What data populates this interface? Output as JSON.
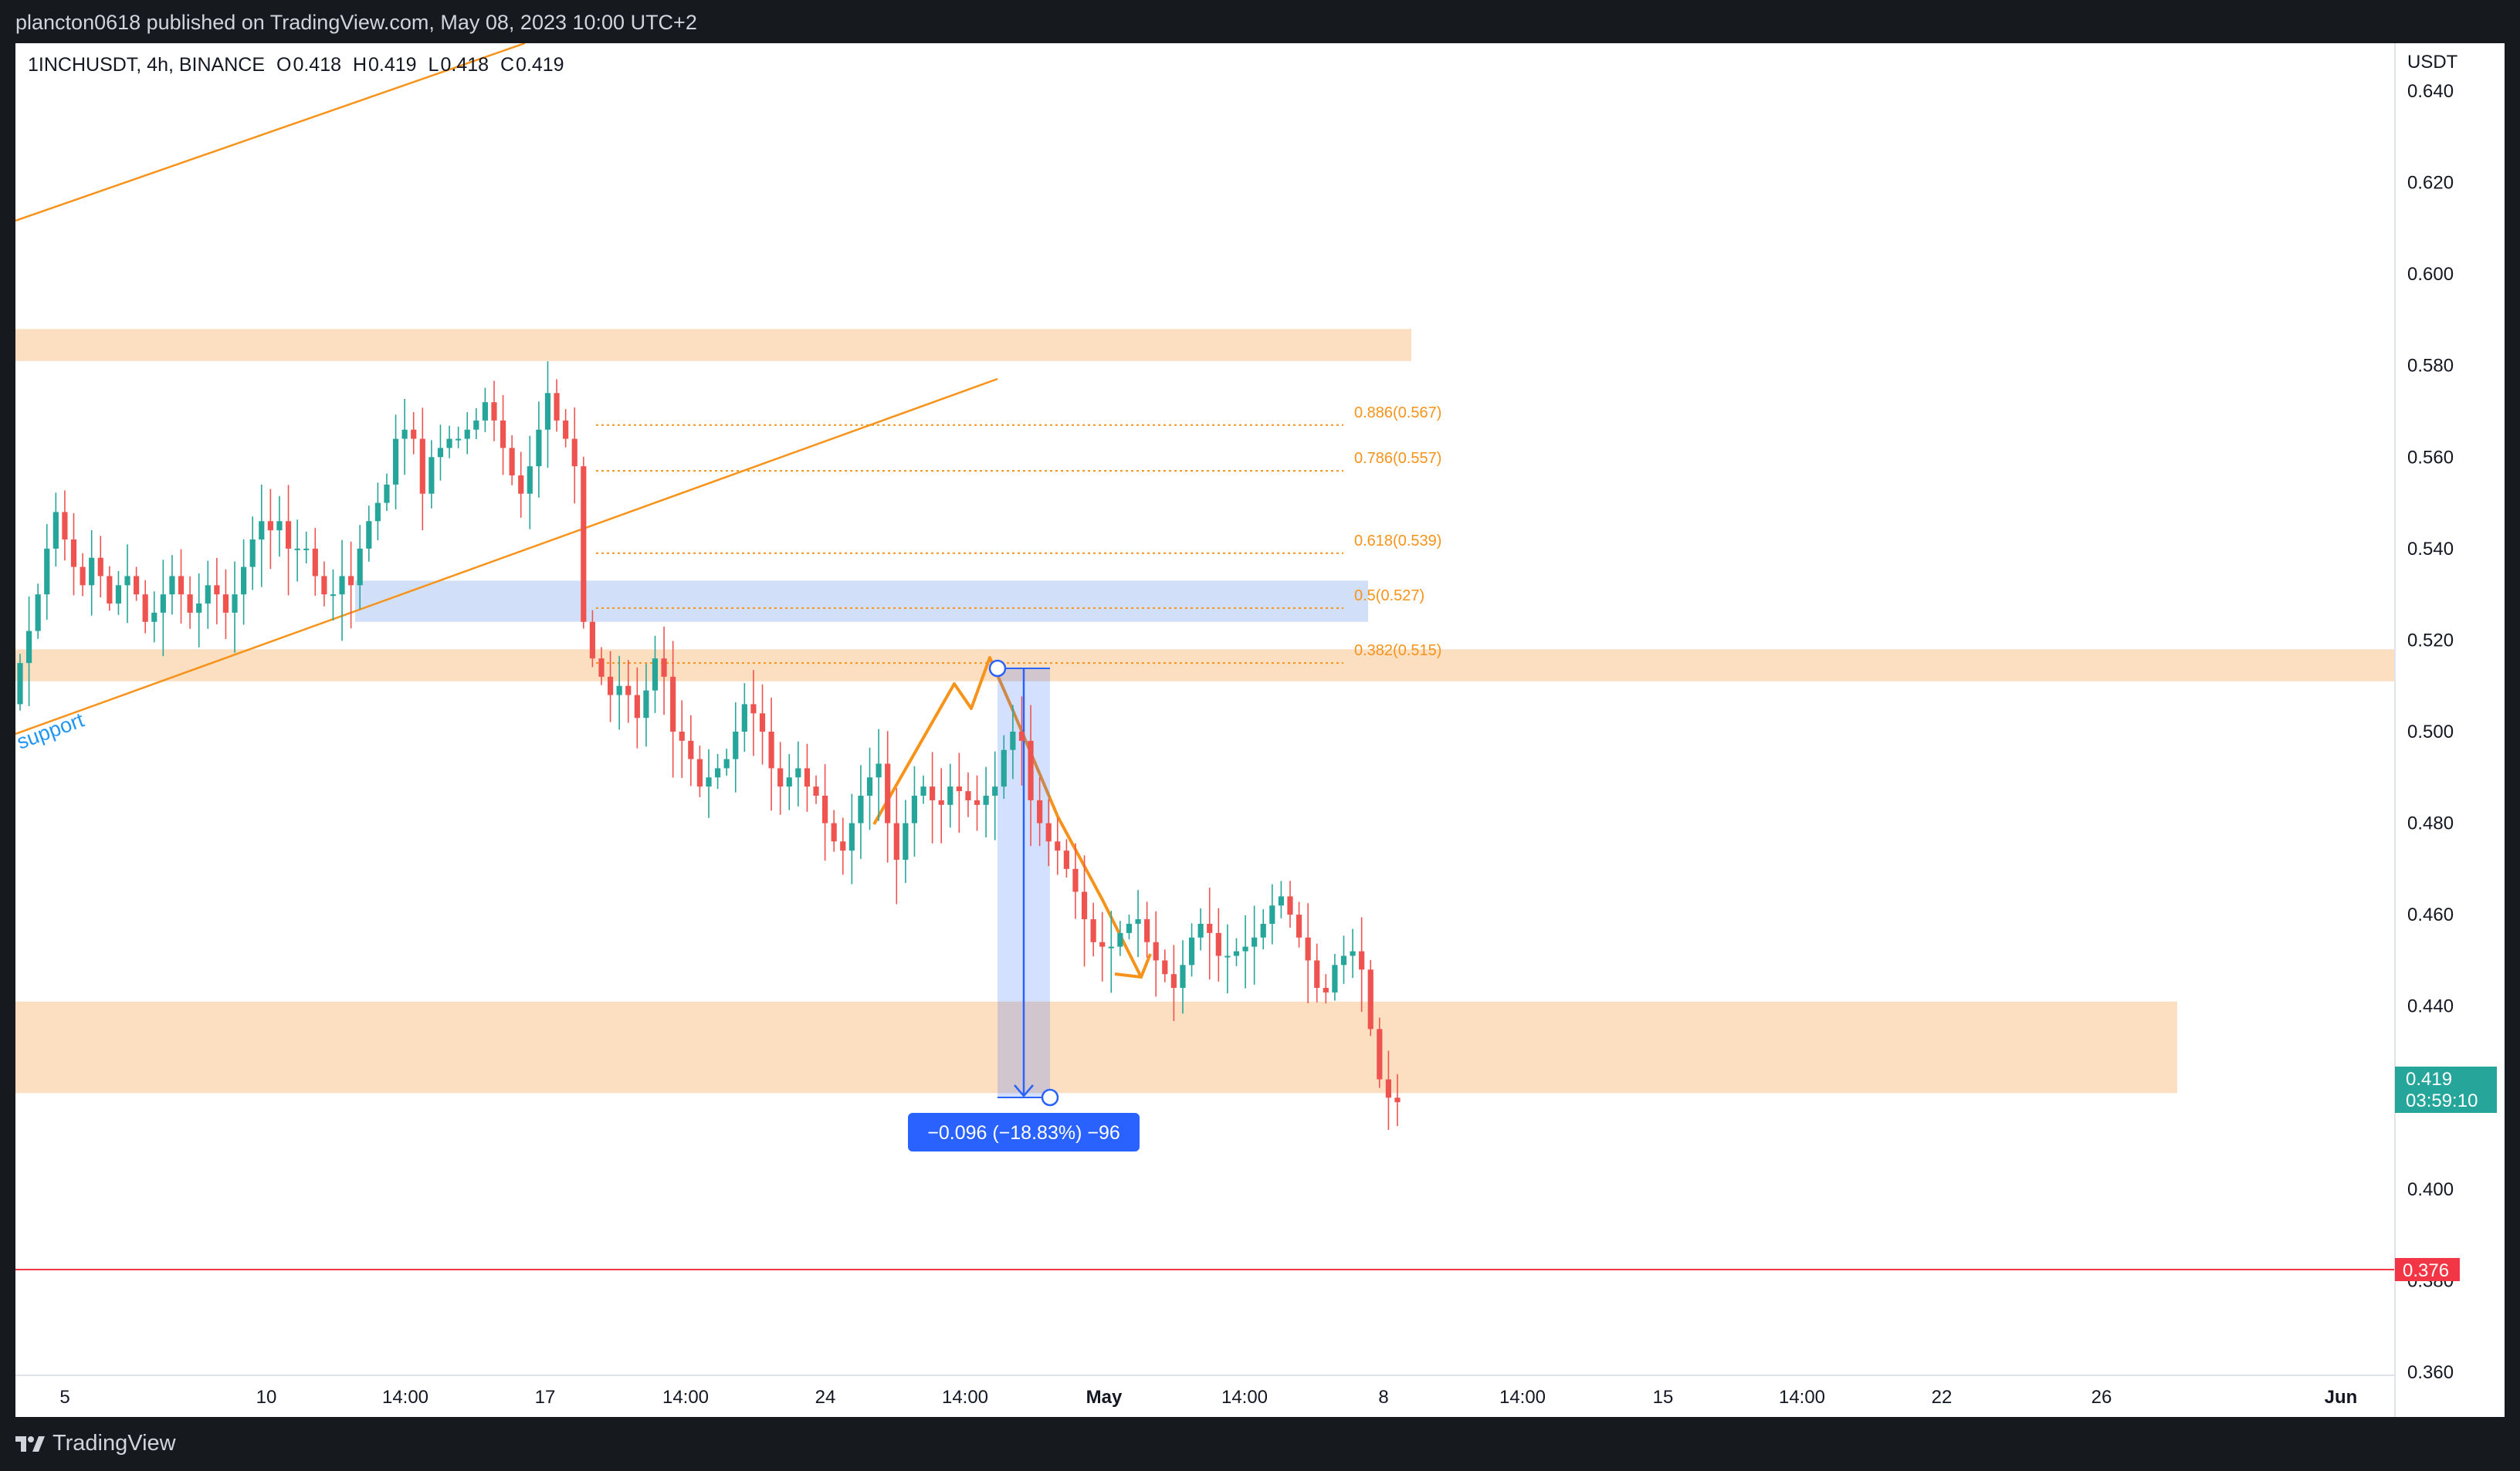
{
  "header": {
    "publisher_line": "plancton0618 published on TradingView.com, May 08, 2023 10:00 UTC+2"
  },
  "footer": {
    "brand": "TradingView",
    "logo_icon": "tradingview-logo-icon"
  },
  "legend": {
    "symbol": "1INCHUSDT, 4h, BINANCE",
    "open_label": "O",
    "open": "0.418",
    "high_label": "H",
    "high": "0.419",
    "low_label": "L",
    "low": "0.418",
    "close_label": "C",
    "close": "0.419"
  },
  "price_axis": {
    "currency": "USDT",
    "ticks": [
      "0.640",
      "0.620",
      "0.600",
      "0.580",
      "0.560",
      "0.540",
      "0.520",
      "0.500",
      "0.480",
      "0.460",
      "0.440",
      "0.400",
      "0.380",
      "0.360"
    ],
    "last_price": "0.419",
    "countdown": "03:59:10",
    "alert_price": "0.376"
  },
  "time_axis": {
    "ticks": [
      "5",
      "10",
      "14:00",
      "17",
      "14:00",
      "24",
      "14:00",
      "May",
      "14:00",
      "8",
      "14:00",
      "15",
      "14:00",
      "22",
      "26",
      "Jun"
    ]
  },
  "annotations": {
    "support_label": "support",
    "fib_levels": [
      "0.886(0.567)",
      "0.786(0.557)",
      "0.618(0.539)",
      "0.5(0.527)",
      "0.382(0.515)"
    ],
    "measure_label": "−0.096 (−18.83%) −96"
  },
  "colors": {
    "up": "#26a69a",
    "down": "#ef5350",
    "fib": "#f7931a",
    "zone_orange": "#fcd9b6",
    "zone_blue": "#c9dbf7",
    "measure_blue": "#2962ff",
    "alert_red": "#f23645",
    "last_price_teal": "#26a69a"
  },
  "chart_data": {
    "type": "candlestick",
    "symbol": "1INCHUSDT",
    "interval": "4h",
    "ylim": [
      0.352,
      0.646
    ],
    "last_close": 0.419,
    "zones": [
      {
        "low": 0.581,
        "high": 0.588
      },
      {
        "low": 0.524,
        "high": 0.533
      },
      {
        "low": 0.511,
        "high": 0.518
      },
      {
        "low": 0.421,
        "high": 0.441
      }
    ],
    "fib_prices": [
      0.567,
      0.557,
      0.539,
      0.527,
      0.515
    ],
    "alert_line": 0.376,
    "close_series": [
      0.515,
      0.522,
      0.53,
      0.54,
      0.548,
      0.542,
      0.536,
      0.532,
      0.538,
      0.534,
      0.528,
      0.532,
      0.534,
      0.53,
      0.524,
      0.526,
      0.53,
      0.534,
      0.53,
      0.526,
      0.528,
      0.532,
      0.53,
      0.526,
      0.53,
      0.536,
      0.542,
      0.546,
      0.544,
      0.546,
      0.54,
      0.54,
      0.54,
      0.534,
      0.53,
      0.53,
      0.534,
      0.532,
      0.54,
      0.546,
      0.55,
      0.554,
      0.564,
      0.566,
      0.564,
      0.552,
      0.56,
      0.562,
      0.564,
      0.564,
      0.566,
      0.568,
      0.572,
      0.568,
      0.562,
      0.556,
      0.552,
      0.558,
      0.566,
      0.574,
      0.568,
      0.564,
      0.558,
      0.524,
      0.516,
      0.512,
      0.508,
      0.51,
      0.508,
      0.503,
      0.509,
      0.516,
      0.512,
      0.5,
      0.498,
      0.494,
      0.488,
      0.49,
      0.492,
      0.494,
      0.5,
      0.506,
      0.504,
      0.5,
      0.492,
      0.488,
      0.49,
      0.492,
      0.488,
      0.486,
      0.48,
      0.476,
      0.474,
      0.48,
      0.486,
      0.49,
      0.493,
      0.48,
      0.472,
      0.48,
      0.486,
      0.488,
      0.485,
      0.484,
      0.488,
      0.487,
      0.485,
      0.484,
      0.486,
      0.488,
      0.496,
      0.5,
      0.498,
      0.485,
      0.48,
      0.476,
      0.474,
      0.47,
      0.465,
      0.459,
      0.454,
      0.453,
      0.453,
      0.456,
      0.458,
      0.459,
      0.454,
      0.45,
      0.447,
      0.444,
      0.449,
      0.455,
      0.458,
      0.456,
      0.451,
      0.451,
      0.452,
      0.453,
      0.455,
      0.458,
      0.462,
      0.464,
      0.46,
      0.455,
      0.45,
      0.444,
      0.443,
      0.449,
      0.451,
      0.452,
      0.448,
      0.435,
      0.424,
      0.42,
      0.419
    ]
  }
}
